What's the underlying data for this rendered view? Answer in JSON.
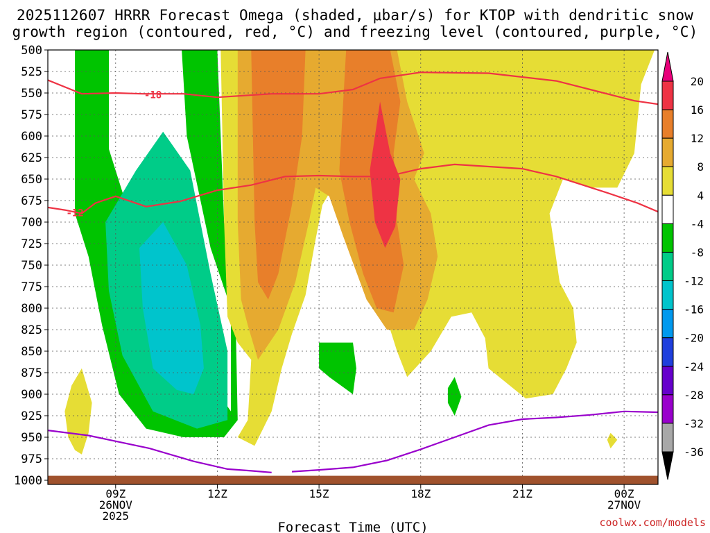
{
  "chart_data": {
    "type": "heatmap",
    "title_line1": "2025112607 HRRR Forecast Omega (shaded, μbar/s) for KTOP with dendritic snow",
    "title_line2": "growth region (contoured, red, °C) and freezing level (contoured, purple, °C)",
    "xlabel": "Forecast Time (UTC)",
    "ylabel": "",
    "x_range_hours_since_26NOV00Z": [
      7,
      25
    ],
    "y_range_mb": [
      500,
      1000
    ],
    "y_ticks": [
      "500",
      "525",
      "550",
      "575",
      "600",
      "625",
      "650",
      "675",
      "700",
      "725",
      "750",
      "775",
      "800",
      "825",
      "850",
      "875",
      "900",
      "925",
      "950",
      "975",
      "1000"
    ],
    "x_ticks": [
      {
        "hour": 9,
        "lines": [
          "09Z",
          "26NOV",
          "2025"
        ]
      },
      {
        "hour": 12,
        "lines": [
          "12Z"
        ]
      },
      {
        "hour": 15,
        "lines": [
          "15Z"
        ]
      },
      {
        "hour": 18,
        "lines": [
          "18Z"
        ]
      },
      {
        "hour": 21,
        "lines": [
          "21Z"
        ]
      },
      {
        "hour": 24,
        "lines": [
          "00Z",
          "27NOV"
        ]
      }
    ],
    "colorbar": {
      "levels": [
        "20",
        "16",
        "12",
        "8",
        "4",
        "-4",
        "-8",
        "-12",
        "-16",
        "-20",
        "-24",
        "-28",
        "-32",
        "-36"
      ],
      "colors": [
        "#ee3344",
        "#e87f2a",
        "#e6aa30",
        "#e6dd35",
        "#ffffff",
        "#00c400",
        "#00cc88",
        "#00c4cc",
        "#0099ee",
        "#1f3fdd",
        "#6600cc",
        "#9900cc",
        "#a8a8a8"
      ],
      "top_arrow_color": "#e8007a",
      "bottom_arrow_color": "#000000"
    },
    "shaded_regions": [
      {
        "label": "-4",
        "color": "#00c400",
        "points": [
          [
            7.8,
            500
          ],
          [
            8.8,
            500
          ],
          [
            8.8,
            615
          ],
          [
            9.4,
            690
          ],
          [
            10.4,
            770
          ],
          [
            11.2,
            830
          ],
          [
            11.7,
            880
          ],
          [
            12.4,
            920
          ],
          [
            12.4,
            800
          ],
          [
            11.8,
            730
          ],
          [
            11.1,
            600
          ],
          [
            10.95,
            500
          ],
          [
            12.0,
            500
          ],
          [
            12.2,
            700
          ],
          [
            12.4,
            760
          ],
          [
            12.55,
            830
          ],
          [
            12.6,
            930
          ],
          [
            12.2,
            950
          ],
          [
            11.0,
            950
          ],
          [
            9.9,
            940
          ],
          [
            9.1,
            900
          ],
          [
            8.6,
            820
          ],
          [
            8.2,
            740
          ],
          [
            7.8,
            690
          ]
        ]
      },
      {
        "label": "-8",
        "color": "#00cc88",
        "points": [
          [
            8.7,
            700
          ],
          [
            9.6,
            640
          ],
          [
            10.4,
            595
          ],
          [
            11.2,
            640
          ],
          [
            11.8,
            760
          ],
          [
            12.3,
            850
          ],
          [
            12.3,
            930
          ],
          [
            11.4,
            940
          ],
          [
            10.1,
            920
          ],
          [
            9.2,
            855
          ],
          [
            8.8,
            780
          ]
        ]
      },
      {
        "label": "-12",
        "color": "#00c4cc",
        "points": [
          [
            9.7,
            730
          ],
          [
            10.4,
            700
          ],
          [
            11.1,
            750
          ],
          [
            11.5,
            820
          ],
          [
            11.6,
            870
          ],
          [
            11.3,
            900
          ],
          [
            10.8,
            895
          ],
          [
            10.1,
            870
          ],
          [
            9.8,
            800
          ]
        ]
      },
      {
        "label": "4",
        "color": "#e6dd35",
        "points": [
          [
            12.1,
            500
          ],
          [
            24.9,
            500
          ],
          [
            24.5,
            540
          ],
          [
            24.3,
            620
          ],
          [
            23.8,
            660
          ],
          [
            23.0,
            660
          ],
          [
            22.2,
            650
          ],
          [
            21.8,
            690
          ],
          [
            22.1,
            770
          ],
          [
            22.5,
            800
          ],
          [
            22.6,
            840
          ],
          [
            22.3,
            870
          ],
          [
            21.9,
            900
          ],
          [
            21.1,
            905
          ],
          [
            20.0,
            870
          ],
          [
            19.9,
            835
          ],
          [
            19.5,
            805
          ],
          [
            18.9,
            810
          ],
          [
            18.3,
            850
          ],
          [
            17.6,
            880
          ],
          [
            17.3,
            850
          ],
          [
            16.9,
            800
          ],
          [
            16.4,
            740
          ],
          [
            15.8,
            680
          ],
          [
            15.4,
            660
          ],
          [
            15.1,
            680
          ],
          [
            14.9,
            720
          ],
          [
            14.6,
            785
          ],
          [
            14.2,
            830
          ],
          [
            13.9,
            870
          ],
          [
            13.6,
            920
          ],
          [
            13.1,
            960
          ],
          [
            12.6,
            950
          ],
          [
            12.9,
            930
          ],
          [
            13.0,
            860
          ],
          [
            12.6,
            840
          ],
          [
            12.3,
            810
          ],
          [
            12.2,
            700
          ]
        ]
      },
      {
        "label": "8",
        "color": "#e6aa30",
        "points": [
          [
            12.6,
            500
          ],
          [
            17.3,
            500
          ],
          [
            17.6,
            560
          ],
          [
            18.1,
            620
          ],
          [
            17.8,
            650
          ],
          [
            18.3,
            690
          ],
          [
            18.5,
            740
          ],
          [
            18.2,
            790
          ],
          [
            17.8,
            825
          ],
          [
            17.0,
            825
          ],
          [
            16.4,
            790
          ],
          [
            15.7,
            715
          ],
          [
            15.3,
            670
          ],
          [
            14.9,
            660
          ],
          [
            14.7,
            700
          ],
          [
            14.3,
            770
          ],
          [
            13.8,
            825
          ],
          [
            13.2,
            860
          ],
          [
            12.9,
            820
          ],
          [
            12.7,
            790
          ],
          [
            12.6,
            700
          ]
        ]
      },
      {
        "label": "12",
        "color": "#e87f2a",
        "points": [
          [
            13.0,
            500
          ],
          [
            14.6,
            500
          ],
          [
            14.5,
            600
          ],
          [
            14.2,
            680
          ],
          [
            13.8,
            760
          ],
          [
            13.5,
            790
          ],
          [
            13.2,
            770
          ],
          [
            13.1,
            700
          ]
        ]
      },
      {
        "label": "12",
        "color": "#e87f2a",
        "points": [
          [
            15.8,
            500
          ],
          [
            17.1,
            500
          ],
          [
            17.4,
            560
          ],
          [
            17.2,
            620
          ],
          [
            17.3,
            700
          ],
          [
            17.5,
            750
          ],
          [
            17.2,
            805
          ],
          [
            16.7,
            800
          ],
          [
            16.3,
            760
          ],
          [
            15.9,
            700
          ],
          [
            15.6,
            640
          ]
        ]
      },
      {
        "label": "16",
        "color": "#ee3344",
        "points": [
          [
            16.8,
            560
          ],
          [
            17.1,
            620
          ],
          [
            17.4,
            650
          ],
          [
            17.25,
            705
          ],
          [
            16.95,
            730
          ],
          [
            16.65,
            700
          ],
          [
            16.5,
            640
          ]
        ]
      },
      {
        "label": "4",
        "color": "#e6dd35",
        "points": [
          [
            7.5,
            920
          ],
          [
            7.7,
            890
          ],
          [
            8.0,
            870
          ],
          [
            8.3,
            910
          ],
          [
            8.2,
            945
          ],
          [
            8.0,
            970
          ],
          [
            7.8,
            965
          ],
          [
            7.6,
            950
          ]
        ]
      },
      {
        "label": "4",
        "color": "#e6dd35",
        "points": [
          [
            23.5,
            953
          ],
          [
            23.6,
            945
          ],
          [
            23.8,
            953
          ],
          [
            23.6,
            963
          ]
        ]
      },
      {
        "label": "-4",
        "color": "#00c400",
        "points": [
          [
            15.0,
            840
          ],
          [
            16.0,
            840
          ],
          [
            16.1,
            870
          ],
          [
            16.0,
            900
          ],
          [
            15.3,
            880
          ],
          [
            15.0,
            870
          ]
        ]
      },
      {
        "label": "-4",
        "color": "#00c400",
        "points": [
          [
            18.8,
            893
          ],
          [
            19.0,
            880
          ],
          [
            19.2,
            903
          ],
          [
            19.0,
            925
          ],
          [
            18.8,
            910
          ]
        ]
      }
    ],
    "contours": [
      {
        "name": "dgz_-18",
        "color": "#ee3344",
        "label": "-18",
        "label_at": [
          10.1,
          552
        ],
        "points": [
          [
            7,
            535
          ],
          [
            8.0,
            551
          ],
          [
            9.0,
            550
          ],
          [
            9.8,
            551
          ],
          [
            11.0,
            551
          ],
          [
            12.0,
            555
          ],
          [
            13.6,
            551
          ],
          [
            15.0,
            551
          ],
          [
            16.0,
            546
          ],
          [
            16.8,
            533
          ],
          [
            18.0,
            526
          ],
          [
            20.0,
            527
          ],
          [
            22.0,
            536
          ],
          [
            23.0,
            546
          ],
          [
            24.3,
            559
          ],
          [
            25,
            563
          ]
        ]
      },
      {
        "name": "dgz_-12",
        "color": "#ee3344",
        "label": "-12",
        "label_at": [
          7.8,
          689
        ],
        "points": [
          [
            7,
            683
          ],
          [
            7.5,
            686
          ],
          [
            8.0,
            690
          ],
          [
            8.4,
            678
          ],
          [
            9.0,
            670
          ],
          [
            9.9,
            682
          ],
          [
            10.9,
            676
          ],
          [
            12.0,
            663
          ],
          [
            13.0,
            657
          ],
          [
            14.0,
            647
          ],
          [
            15.0,
            646
          ],
          [
            16.0,
            647
          ],
          [
            17.0,
            647
          ],
          [
            18.0,
            638
          ],
          [
            19.0,
            633
          ],
          [
            19.8,
            635
          ],
          [
            21.0,
            638
          ],
          [
            22.0,
            647
          ],
          [
            23.5,
            666
          ],
          [
            24.4,
            678
          ],
          [
            25,
            688
          ]
        ]
      },
      {
        "name": "freezing_level_0",
        "color": "#9900cc",
        "label": "",
        "points": [
          [
            7,
            942
          ],
          [
            8.2,
            948
          ],
          [
            10.0,
            963
          ],
          [
            11.3,
            978
          ],
          [
            12.3,
            987
          ],
          [
            13.0,
            989
          ],
          [
            13.6,
            991
          ]
        ]
      },
      {
        "name": "freezing_level_0_b",
        "color": "#9900cc",
        "label": "",
        "points": [
          [
            14.2,
            990
          ],
          [
            15.0,
            988
          ],
          [
            16.0,
            985
          ],
          [
            17.0,
            977
          ],
          [
            18.0,
            964
          ],
          [
            19.0,
            950
          ],
          [
            20.0,
            936
          ],
          [
            21.0,
            929
          ],
          [
            22.0,
            927
          ],
          [
            23.0,
            924
          ],
          [
            24.0,
            920
          ],
          [
            25,
            921
          ]
        ]
      }
    ],
    "ground": {
      "color": "#a0522d",
      "from_mb": 994,
      "to_mb": 1000
    }
  },
  "footer": {
    "credit": "coolwx.com/models"
  }
}
